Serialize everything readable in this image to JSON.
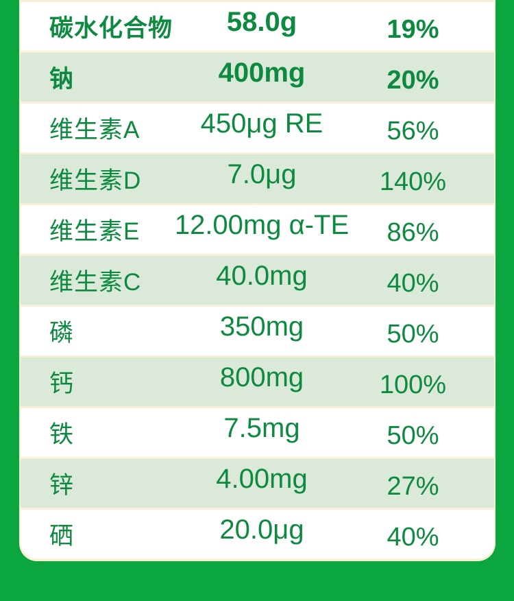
{
  "colors": {
    "background_green": "#0BA63E",
    "panel_cream": "#F9F1D7",
    "row_white": "#FFFFFF",
    "row_light_green": "#DBEAD8",
    "text_green": "#0D8A40"
  },
  "table": {
    "columns": [
      "nutrient_name",
      "amount_per_serving",
      "nrv_percent"
    ],
    "rows": [
      {
        "name": "碳水化合物",
        "amount": "58.0g",
        "percent": "19%",
        "bold": true,
        "shade": "white"
      },
      {
        "name": "钠",
        "amount": "400mg",
        "percent": "20%",
        "bold": true,
        "shade": "green"
      },
      {
        "name": "维生素A",
        "amount": "450μg RE",
        "percent": "56%",
        "bold": false,
        "shade": "white"
      },
      {
        "name": "维生素D",
        "amount": "7.0μg",
        "percent": "140%",
        "bold": false,
        "shade": "green"
      },
      {
        "name": "维生素E",
        "amount": "12.00mg α-TE",
        "percent": "86%",
        "bold": false,
        "shade": "white"
      },
      {
        "name": "维生素C",
        "amount": "40.0mg",
        "percent": "40%",
        "bold": false,
        "shade": "green"
      },
      {
        "name": "磷",
        "amount": "350mg",
        "percent": "50%",
        "bold": false,
        "shade": "white"
      },
      {
        "name": "钙",
        "amount": "800mg",
        "percent": "100%",
        "bold": false,
        "shade": "green"
      },
      {
        "name": "铁",
        "amount": "7.5mg",
        "percent": "50%",
        "bold": false,
        "shade": "white"
      },
      {
        "name": "锌",
        "amount": "4.00mg",
        "percent": "27%",
        "bold": false,
        "shade": "green"
      },
      {
        "name": "硒",
        "amount": "20.0μg",
        "percent": "40%",
        "bold": false,
        "shade": "white"
      }
    ]
  }
}
